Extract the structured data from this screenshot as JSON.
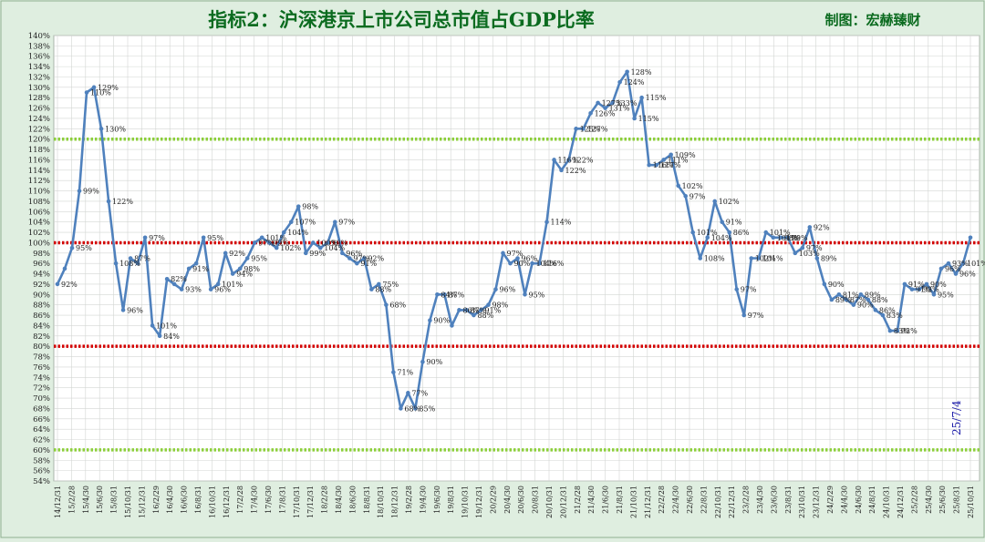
{
  "chart_data": {
    "type": "line",
    "title": "指标2：沪深港京上市公司总市值占GDP比率",
    "credit": "制图：宏赫臻财",
    "date_stamp": "25/7/4",
    "ylim": [
      54,
      140
    ],
    "y_step": 2,
    "y_unit": "%",
    "grid": true,
    "reference_lines": [
      {
        "value": 120,
        "color": "#8ccf3a",
        "style": "dotted"
      },
      {
        "value": 100,
        "color": "#d40000",
        "style": "dotted"
      },
      {
        "value": 80,
        "color": "#d40000",
        "style": "dotted"
      },
      {
        "value": 60,
        "color": "#8ccf3a",
        "style": "dotted"
      }
    ],
    "x_labels": [
      "14/12/31",
      "15/2/28",
      "15/4/30",
      "15/6/30",
      "15/8/31",
      "15/10/31",
      "15/12/31",
      "16/2/29",
      "16/4/30",
      "16/6/30",
      "16/8/31",
      "16/10/31",
      "16/12/31",
      "17/2/28",
      "17/4/30",
      "17/6/30",
      "17/8/31",
      "17/10/31",
      "17/12/31",
      "18/2/28",
      "18/4/30",
      "18/6/30",
      "18/8/31",
      "18/10/31",
      "18/12/31",
      "19/2/28",
      "19/4/30",
      "19/6/30",
      "19/8/31",
      "19/10/31",
      "19/12/31",
      "20/2/29",
      "20/4/30",
      "20/6/30",
      "20/8/31",
      "20/10/31",
      "20/12/31",
      "21/2/28",
      "21/4/30",
      "21/6/30",
      "21/8/31",
      "21/10/31",
      "21/12/31",
      "22/2/28",
      "22/4/30",
      "22/6/30",
      "22/8/31",
      "22/10/31",
      "22/12/31",
      "23/2/28",
      "23/4/30",
      "23/6/30",
      "23/8/31",
      "23/10/31",
      "23/12/31",
      "24/2/29",
      "24/4/30",
      "24/6/30",
      "24/8/31",
      "24/10/31",
      "24/12/31",
      "25/2/28",
      "25/4/30",
      "25/6/30",
      "25/8/31",
      "25/10/31"
    ],
    "line_color": "#4f81bd",
    "series": [
      {
        "values": [
          92,
          95,
          99,
          110,
          129,
          130,
          122,
          108,
          96,
          87,
          97,
          96,
          101,
          84,
          82,
          93,
          92,
          91,
          95,
          96,
          101,
          91,
          92,
          98,
          94,
          95,
          97,
          100,
          101,
          100,
          99,
          102,
          104,
          107,
          98,
          100,
          99,
          100,
          104,
          98,
          97,
          96,
          97,
          91,
          92,
          88,
          75,
          68,
          71,
          68,
          77,
          85,
          90,
          90,
          84,
          87,
          87,
          86,
          87,
          88,
          91,
          98,
          96,
          97,
          90,
          96,
          96,
          104,
          116,
          114,
          116,
          122,
          122,
          125,
          127,
          126,
          127,
          131,
          133,
          124,
          128,
          115,
          115,
          116,
          117,
          111,
          109,
          102,
          97,
          101,
          108,
          104,
          102,
          91,
          86,
          97,
          97,
          102,
          101,
          101,
          101,
          98,
          99,
          103,
          97,
          92,
          89,
          90,
          89,
          88,
          90,
          89,
          87,
          86,
          83,
          83,
          92,
          91,
          91,
          92,
          90,
          95,
          96,
          94,
          96,
          101
        ]
      }
    ],
    "data_labels": [
      {
        "i": 0,
        "text": "92%"
      },
      {
        "i": 2,
        "text": "95%"
      },
      {
        "i": 3,
        "text": "99%"
      },
      {
        "i": 4,
        "text": "110%"
      },
      {
        "i": 5,
        "text": "129%"
      },
      {
        "i": 6,
        "text": "130%"
      },
      {
        "i": 7,
        "text": "122%"
      },
      {
        "i": 8,
        "text": "108%"
      },
      {
        "i": 9,
        "text": "96%"
      },
      {
        "i": 10,
        "text": "87%"
      },
      {
        "i": 12,
        "text": "97%"
      },
      {
        "i": 13,
        "text": "101%"
      },
      {
        "i": 14,
        "text": "84%"
      },
      {
        "i": 15,
        "text": "82%"
      },
      {
        "i": 17,
        "text": "93%"
      },
      {
        "i": 18,
        "text": "91%"
      },
      {
        "i": 20,
        "text": "95%"
      },
      {
        "i": 21,
        "text": "96%"
      },
      {
        "i": 22,
        "text": "101%"
      },
      {
        "i": 23,
        "text": "92%"
      },
      {
        "i": 24,
        "text": "94%"
      },
      {
        "i": 25,
        "text": "98%"
      },
      {
        "i": 26,
        "text": "95%"
      },
      {
        "i": 27,
        "text": "97%"
      },
      {
        "i": 28,
        "text": "101%"
      },
      {
        "i": 29,
        "text": "99%"
      },
      {
        "i": 30,
        "text": "102%"
      },
      {
        "i": 31,
        "text": "104%"
      },
      {
        "i": 32,
        "text": "107%"
      },
      {
        "i": 33,
        "text": "98%"
      },
      {
        "i": 34,
        "text": "99%"
      },
      {
        "i": 35,
        "text": "100%"
      },
      {
        "i": 36,
        "text": "104%"
      },
      {
        "i": 37,
        "text": "99%"
      },
      {
        "i": 38,
        "text": "97%"
      },
      {
        "i": 39,
        "text": "96%"
      },
      {
        "i": 40,
        "text": "97%"
      },
      {
        "i": 41,
        "text": "91%"
      },
      {
        "i": 42,
        "text": "92%"
      },
      {
        "i": 43,
        "text": "88%"
      },
      {
        "i": 44,
        "text": "75%"
      },
      {
        "i": 45,
        "text": "68%"
      },
      {
        "i": 46,
        "text": "71%"
      },
      {
        "i": 47,
        "text": "68%"
      },
      {
        "i": 48,
        "text": "77%"
      },
      {
        "i": 49,
        "text": "85%"
      },
      {
        "i": 50,
        "text": "90%"
      },
      {
        "i": 51,
        "text": "90%"
      },
      {
        "i": 52,
        "text": "84%"
      },
      {
        "i": 53,
        "text": "87%"
      },
      {
        "i": 55,
        "text": "86%"
      },
      {
        "i": 56,
        "text": "87%"
      },
      {
        "i": 57,
        "text": "88%"
      },
      {
        "i": 58,
        "text": "91%"
      },
      {
        "i": 59,
        "text": "98%"
      },
      {
        "i": 60,
        "text": "96%"
      },
      {
        "i": 61,
        "text": "97%"
      },
      {
        "i": 62,
        "text": "90%"
      },
      {
        "i": 63,
        "text": "96%"
      },
      {
        "i": 64,
        "text": "95%"
      },
      {
        "i": 65,
        "text": "104%"
      },
      {
        "i": 66,
        "text": "116%"
      },
      {
        "i": 67,
        "text": "114%"
      },
      {
        "i": 68,
        "text": "116%"
      },
      {
        "i": 69,
        "text": "122%"
      },
      {
        "i": 70,
        "text": "122%"
      },
      {
        "i": 71,
        "text": "125%"
      },
      {
        "i": 72,
        "text": "127%"
      },
      {
        "i": 73,
        "text": "126%"
      },
      {
        "i": 74,
        "text": "127%"
      },
      {
        "i": 75,
        "text": "131%"
      },
      {
        "i": 76,
        "text": "133%"
      },
      {
        "i": 77,
        "text": "124%"
      },
      {
        "i": 78,
        "text": "128%"
      },
      {
        "i": 79,
        "text": "115%"
      },
      {
        "i": 80,
        "text": "115%"
      },
      {
        "i": 81,
        "text": "116%"
      },
      {
        "i": 82,
        "text": "117%"
      },
      {
        "i": 83,
        "text": "111%"
      },
      {
        "i": 84,
        "text": "109%"
      },
      {
        "i": 85,
        "text": "102%"
      },
      {
        "i": 86,
        "text": "97%"
      },
      {
        "i": 87,
        "text": "101%"
      },
      {
        "i": 88,
        "text": "108%"
      },
      {
        "i": 89,
        "text": "104%"
      },
      {
        "i": 90,
        "text": "102%"
      },
      {
        "i": 91,
        "text": "91%"
      },
      {
        "i": 92,
        "text": "86%"
      },
      {
        "i": 93,
        "text": "97%"
      },
      {
        "i": 94,
        "text": "97%"
      },
      {
        "i": 95,
        "text": "102%"
      },
      {
        "i": 96,
        "text": "101%"
      },
      {
        "i": 97,
        "text": "101%"
      },
      {
        "i": 98,
        "text": "101%"
      },
      {
        "i": 99,
        "text": "98%"
      },
      {
        "i": 100,
        "text": "99%"
      },
      {
        "i": 101,
        "text": "103%"
      },
      {
        "i": 102,
        "text": "97%"
      },
      {
        "i": 103,
        "text": "92%"
      },
      {
        "i": 104,
        "text": "89%"
      },
      {
        "i": 105,
        "text": "90%"
      },
      {
        "i": 106,
        "text": "89%"
      },
      {
        "i": 107,
        "text": "81%"
      },
      {
        "i": 108,
        "text": "87%"
      },
      {
        "i": 109,
        "text": "90%"
      },
      {
        "i": 110,
        "text": "89%"
      },
      {
        "i": 111,
        "text": "88%"
      },
      {
        "i": 112,
        "text": "86%"
      },
      {
        "i": 113,
        "text": "83%"
      },
      {
        "i": 114,
        "text": "83%"
      },
      {
        "i": 115,
        "text": "92%"
      },
      {
        "i": 116,
        "text": "91%"
      },
      {
        "i": 117,
        "text": "91%"
      },
      {
        "i": 118,
        "text": "92%"
      },
      {
        "i": 119,
        "text": "90%"
      },
      {
        "i": 120,
        "text": "95%"
      },
      {
        "i": 121,
        "text": "96%"
      },
      {
        "i": 122,
        "text": "93%"
      },
      {
        "i": 123,
        "text": "96%"
      },
      {
        "i": 124,
        "text": "101%"
      }
    ]
  }
}
